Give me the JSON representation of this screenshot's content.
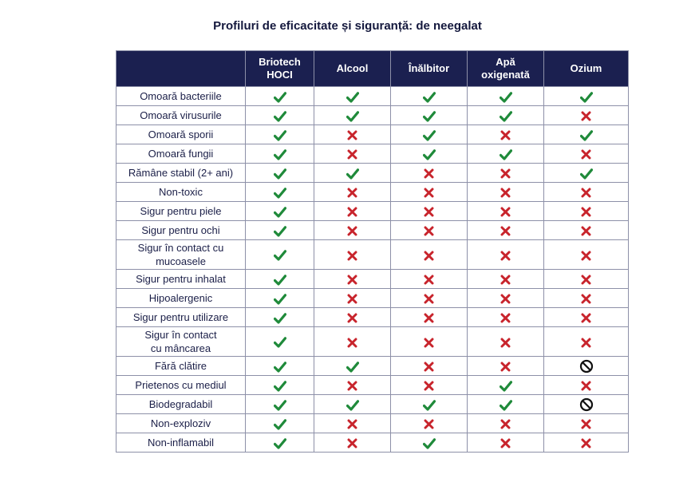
{
  "title": "Profiluri de eficacitate și siguranță: de neegalat",
  "colors": {
    "header_bg": "#1b2050",
    "check": "#1f8a3a",
    "cross": "#c8242c",
    "prohibited": "#111111",
    "border": "#8d90a8"
  },
  "icons": {
    "yes": "check-icon",
    "no": "cross-icon",
    "na": "prohibited-icon"
  },
  "table": {
    "columns": [
      "",
      "Briotech\nHOCI",
      "Alcool",
      "Înălbitor",
      "Apă\noxigenată",
      "Ozium"
    ],
    "rows": [
      {
        "label": "Omoară bacteriile",
        "values": [
          "yes",
          "yes",
          "yes",
          "yes",
          "yes"
        ]
      },
      {
        "label": "Omoară virusurile",
        "values": [
          "yes",
          "yes",
          "yes",
          "yes",
          "no"
        ]
      },
      {
        "label": "Omoară sporii",
        "values": [
          "yes",
          "no",
          "yes",
          "no",
          "yes"
        ]
      },
      {
        "label": "Omoară fungii",
        "values": [
          "yes",
          "no",
          "yes",
          "yes",
          "no"
        ]
      },
      {
        "label": "Rămâne stabil (2+ ani)",
        "values": [
          "yes",
          "yes",
          "no",
          "no",
          "yes"
        ]
      },
      {
        "label": "Non-toxic",
        "values": [
          "yes",
          "no",
          "no",
          "no",
          "no"
        ]
      },
      {
        "label": "Sigur pentru piele",
        "values": [
          "yes",
          "no",
          "no",
          "no",
          "no"
        ]
      },
      {
        "label": "Sigur pentru ochi",
        "values": [
          "yes",
          "no",
          "no",
          "no",
          "no"
        ]
      },
      {
        "label": "Sigur în contact cu\nmucoasele",
        "values": [
          "yes",
          "no",
          "no",
          "no",
          "no"
        ],
        "tall": true
      },
      {
        "label": "Sigur pentru inhalat",
        "values": [
          "yes",
          "no",
          "no",
          "no",
          "no"
        ]
      },
      {
        "label": "Hipoalergenic",
        "values": [
          "yes",
          "no",
          "no",
          "no",
          "no"
        ]
      },
      {
        "label": "Sigur pentru utilizare",
        "values": [
          "yes",
          "no",
          "no",
          "no",
          "no"
        ]
      },
      {
        "label": "Sigur în contact\ncu mâncarea",
        "values": [
          "yes",
          "no",
          "no",
          "no",
          "no"
        ],
        "tall": true
      },
      {
        "label": "Fără clătire",
        "values": [
          "yes",
          "yes",
          "no",
          "no",
          "na"
        ]
      },
      {
        "label": "Prietenos cu mediul",
        "values": [
          "yes",
          "no",
          "no",
          "yes",
          "no"
        ]
      },
      {
        "label": "Biodegradabil",
        "values": [
          "yes",
          "yes",
          "yes",
          "yes",
          "na"
        ]
      },
      {
        "label": "Non-exploziv",
        "values": [
          "yes",
          "no",
          "no",
          "no",
          "no"
        ]
      },
      {
        "label": "Non-inflamabil",
        "values": [
          "yes",
          "no",
          "yes",
          "no",
          "no"
        ]
      }
    ]
  }
}
